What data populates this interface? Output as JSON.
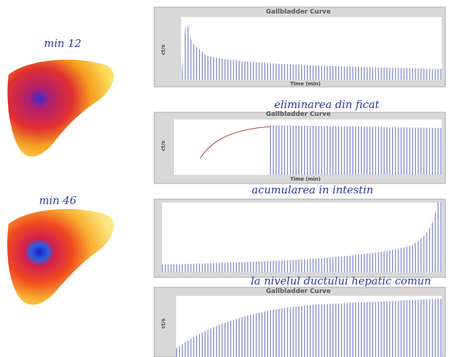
{
  "images": [
    {
      "label": "min 12"
    },
    {
      "label": "min 46"
    }
  ],
  "panels": [
    {
      "title": "Gallbladder Curve",
      "x_label": "Time (min)",
      "y_label": "ct/s"
    },
    {
      "title": "Gallbladder Curve",
      "x_label": "Time (min)",
      "y_label": "ct/s"
    },
    {
      "title": "Gallbladder Curve",
      "y_label": "ct/s"
    }
  ],
  "captions": [
    "eliminarea din ficat",
    "acumularea in intestin",
    "la nivelul ductului hepatic comun"
  ]
}
